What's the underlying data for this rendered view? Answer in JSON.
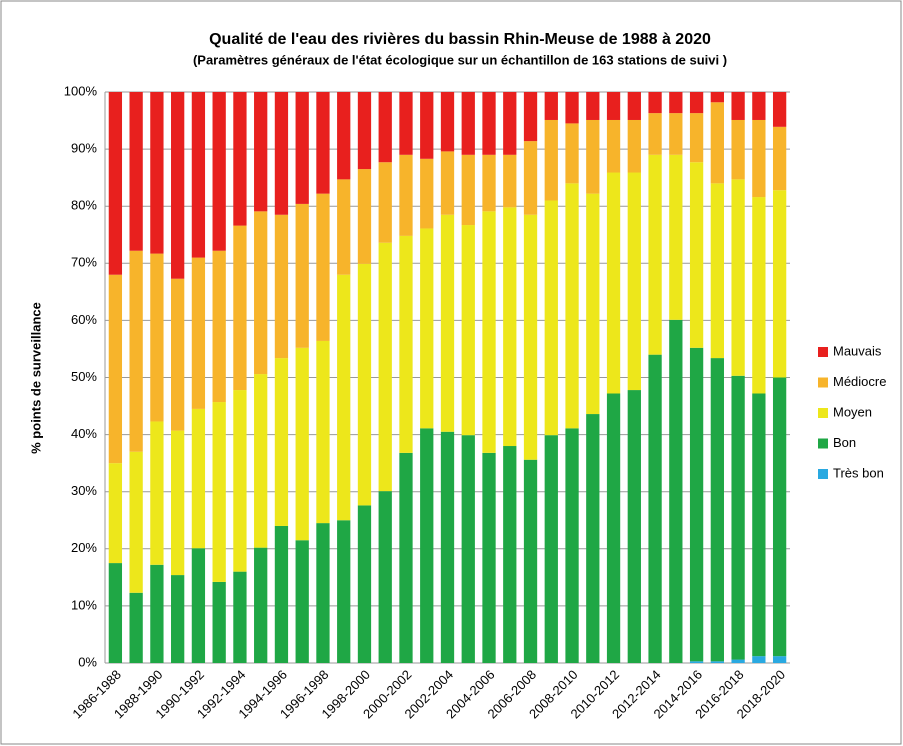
{
  "chart_data": {
    "type": "stacked_bar",
    "title": "Qualité de l'eau des rivières du bassin Rhin-Meuse de 1988 à 2020",
    "subtitle": "(Paramètres généraux de l'état écologique sur un échantillon de 163 stations de suivi )",
    "y_label": "% points de surveillance",
    "categories": [
      "1986-1988",
      null,
      "1988-1990",
      null,
      "1990-1992",
      null,
      "1992-1994",
      null,
      "1994-1996",
      null,
      "1996-1998",
      null,
      "1998-2000",
      null,
      "2000-2002",
      null,
      "2002-2004",
      null,
      "2004-2006",
      null,
      "2006-2008",
      null,
      "2008-2010",
      null,
      "2010-2012",
      null,
      "2012-2014",
      null,
      "2014-2016",
      null,
      "2016-2018",
      null,
      "2018-2020"
    ],
    "series": [
      {
        "name": "Très bon",
        "color": "#29a9e1",
        "values": [
          0,
          0,
          0,
          0,
          0,
          0,
          0,
          0,
          0,
          0,
          0,
          0,
          0,
          0,
          0,
          0,
          0,
          0,
          0,
          0,
          0,
          0,
          0,
          0,
          0,
          0,
          0,
          0,
          0.3,
          0.3,
          0.6,
          1.2,
          1.2
        ]
      },
      {
        "name": "Bon",
        "color": "#1fa745",
        "values": [
          17.5,
          12.3,
          17.2,
          15.4,
          20.1,
          14.2,
          16,
          20.2,
          24,
          21.5,
          24.5,
          25,
          27.6,
          30.1,
          36.8,
          41.1,
          40.5,
          39.9,
          36.8,
          38,
          35.6,
          39.9,
          41.1,
          43.6,
          47.2,
          47.8,
          54,
          60.1,
          54.9,
          53.1,
          49.7,
          46,
          48.8
        ]
      },
      {
        "name": "Moyen",
        "color": "#ede71b",
        "values": [
          17.5,
          24.7,
          25.1,
          25.3,
          24.4,
          31.5,
          31.8,
          30.4,
          29.4,
          33.7,
          31.9,
          43,
          42.3,
          43.5,
          38,
          35,
          38,
          36.8,
          42.3,
          41.8,
          42.9,
          41.1,
          42.9,
          38.6,
          38.7,
          38.1,
          35,
          28.9,
          32.5,
          30.6,
          34.4,
          34.4,
          32.8
        ]
      },
      {
        "name": "Médiocre",
        "color": "#f7b42b",
        "values": [
          33,
          35.2,
          29.4,
          26.6,
          26.5,
          26.5,
          28.8,
          28.5,
          25.1,
          25.2,
          25.8,
          16.7,
          16.6,
          14.1,
          14.2,
          12.2,
          11.1,
          12.3,
          9.9,
          9.2,
          12.9,
          14.1,
          10.5,
          12.9,
          9.2,
          9.2,
          7.3,
          7.3,
          8.6,
          14.2,
          10.4,
          13.5,
          11.1
        ]
      },
      {
        "name": "Mauvais",
        "color": "#e8201e",
        "values": [
          32,
          27.8,
          28.3,
          32.7,
          29,
          27.8,
          23.4,
          20.9,
          21.5,
          19.6,
          17.8,
          15.3,
          13.5,
          12.3,
          11,
          11.7,
          10.4,
          11,
          11,
          11,
          8.6,
          4.9,
          5.5,
          4.9,
          4.9,
          4.9,
          3.7,
          3.7,
          3.7,
          1.8,
          4.9,
          4.9,
          6.1
        ]
      }
    ],
    "ylim": [
      0,
      100
    ],
    "yticks": [
      {
        "value": 0,
        "label": "0%"
      },
      {
        "value": 10,
        "label": "10%"
      },
      {
        "value": 20,
        "label": "20%"
      },
      {
        "value": 30,
        "label": "30%"
      },
      {
        "value": 40,
        "label": "40%"
      },
      {
        "value": 50,
        "label": "50%"
      },
      {
        "value": 60,
        "label": "60%"
      },
      {
        "value": 70,
        "label": "70%"
      },
      {
        "value": 80,
        "label": "80%"
      },
      {
        "value": 90,
        "label": "90%"
      },
      {
        "value": 100,
        "label": "100%"
      }
    ],
    "grid": true,
    "legend": "right"
  }
}
